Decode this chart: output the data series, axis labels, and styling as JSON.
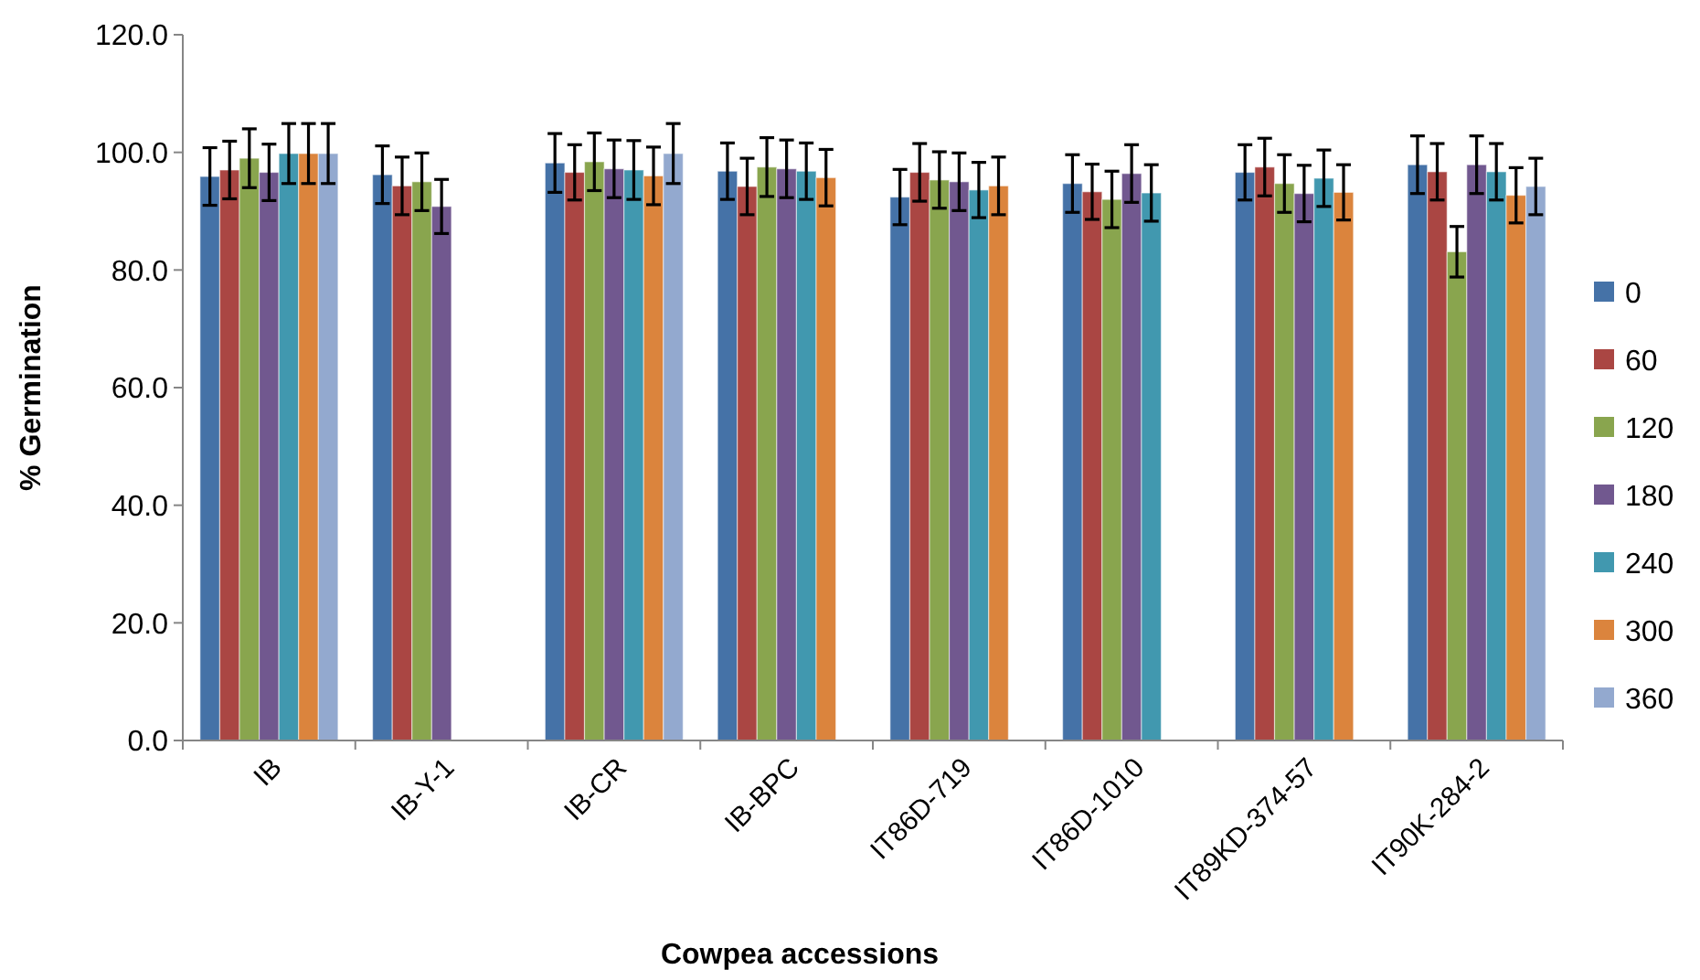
{
  "chart_data": {
    "type": "bar",
    "xlabel": "Cowpea accessions",
    "ylabel": "% Germination",
    "categories": [
      "IB",
      "IB-Y-1",
      "IB-CR",
      "IB-BPC",
      "IT86D-719",
      "IT86D-1010",
      "IT89KD-374-57",
      "IT90K-284-2"
    ],
    "ylim": [
      0,
      120
    ],
    "yticks": [
      {
        "value": 0,
        "label": "0.0"
      },
      {
        "value": 20,
        "label": "20.0"
      },
      {
        "value": 40,
        "label": "40.0"
      },
      {
        "value": 60,
        "label": "60.0"
      },
      {
        "value": 80,
        "label": "80.0"
      },
      {
        "value": 100,
        "label": "100.0"
      },
      {
        "value": 120,
        "label": "120.0"
      }
    ],
    "legend": "right",
    "grid": false,
    "series": [
      {
        "name": "0",
        "color": "#4572a7",
        "values": [
          95.9,
          96.2,
          98.2,
          96.8,
          92.4,
          94.7,
          96.6,
          97.9
        ],
        "errors": [
          4.9,
          4.9,
          5,
          4.8,
          4.7,
          4.9,
          4.7,
          4.9
        ]
      },
      {
        "name": "60",
        "color": "#aa4643",
        "values": [
          97,
          94.3,
          96.6,
          94.2,
          96.6,
          93.3,
          97.5,
          96.7
        ],
        "errors": [
          4.9,
          4.9,
          4.7,
          4.8,
          4.9,
          4.7,
          4.9,
          4.8
        ]
      },
      {
        "name": "120",
        "color": "#89a54e",
        "values": [
          99,
          95,
          98.4,
          97.5,
          95.3,
          92,
          94.7,
          83.1
        ],
        "errors": [
          5,
          4.9,
          4.9,
          5,
          4.8,
          4.8,
          4.9,
          4.3
        ]
      },
      {
        "name": "180",
        "color": "#71588f",
        "values": [
          96.6,
          90.8,
          97.2,
          97.2,
          95,
          96.4,
          93,
          97.9
        ],
        "errors": [
          4.8,
          4.6,
          4.9,
          4.9,
          4.9,
          4.9,
          4.8,
          4.9
        ]
      },
      {
        "name": "240",
        "color": "#4198af",
        "values": [
          99.8,
          null,
          97,
          96.8,
          93.6,
          93.1,
          95.6,
          96.7
        ],
        "errors": [
          5.1,
          null,
          5,
          4.8,
          4.7,
          4.8,
          4.8,
          4.8
        ]
      },
      {
        "name": "300",
        "color": "#db843d",
        "values": [
          99.8,
          null,
          96,
          95.7,
          94.3,
          null,
          93.2,
          92.7
        ],
        "errors": [
          5.1,
          null,
          4.9,
          4.8,
          4.9,
          null,
          4.7,
          4.7
        ]
      },
      {
        "name": "360",
        "color": "#93a9cf",
        "values": [
          99.8,
          null,
          99.8,
          null,
          null,
          null,
          null,
          94.2
        ],
        "errors": [
          5.1,
          null,
          5.1,
          null,
          null,
          null,
          null,
          4.8
        ]
      }
    ]
  }
}
